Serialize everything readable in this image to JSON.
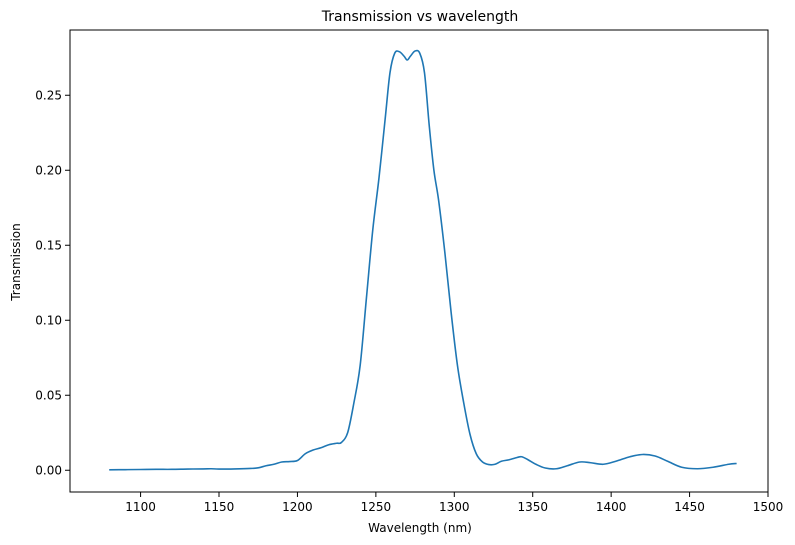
{
  "chart_data": {
    "type": "line",
    "title": "Transmission vs wavelength",
    "xlabel": "Wavelength (nm)",
    "ylabel": "Transmission",
    "xlim": [
      1055,
      1500
    ],
    "ylim": [
      -0.0145,
      0.2935
    ],
    "xticks": [
      1100,
      1150,
      1200,
      1250,
      1300,
      1350,
      1400,
      1450,
      1500
    ],
    "yticks": [
      0.0,
      0.05,
      0.1,
      0.15,
      0.2,
      0.25
    ],
    "xtick_labels": [
      "1100",
      "1150",
      "1200",
      "1250",
      "1300",
      "1350",
      "1400",
      "1450",
      "1500"
    ],
    "ytick_labels": [
      "0.00",
      "0.05",
      "0.10",
      "0.15",
      "0.20",
      "0.25"
    ],
    "grid": false,
    "series": [
      {
        "color": "#1f77b4",
        "x": [
          1080,
          1090,
          1100,
          1110,
          1120,
          1130,
          1140,
          1145,
          1150,
          1160,
          1170,
          1175,
          1180,
          1185,
          1190,
          1195,
          1200,
          1205,
          1210,
          1215,
          1220,
          1225,
          1228,
          1232,
          1236,
          1240,
          1244,
          1248,
          1252,
          1256,
          1259,
          1262,
          1265,
          1268,
          1270,
          1272,
          1275,
          1278,
          1281,
          1284,
          1287,
          1290,
          1294,
          1298,
          1302,
          1306,
          1310,
          1314,
          1318,
          1322,
          1326,
          1330,
          1335,
          1340,
          1343,
          1347,
          1352,
          1358,
          1365,
          1372,
          1380,
          1387,
          1395,
          1403,
          1412,
          1420,
          1428,
          1436,
          1445,
          1455,
          1465,
          1475,
          1480
        ],
        "y": [
          0.0003,
          0.0004,
          0.0005,
          0.0006,
          0.0006,
          0.0008,
          0.0009,
          0.001,
          0.0008,
          0.0009,
          0.0012,
          0.0016,
          0.003,
          0.004,
          0.0055,
          0.0058,
          0.0065,
          0.011,
          0.0135,
          0.015,
          0.017,
          0.018,
          0.0185,
          0.025,
          0.045,
          0.07,
          0.115,
          0.16,
          0.195,
          0.235,
          0.265,
          0.278,
          0.279,
          0.276,
          0.2735,
          0.276,
          0.2795,
          0.278,
          0.265,
          0.23,
          0.2,
          0.18,
          0.145,
          0.105,
          0.07,
          0.045,
          0.024,
          0.011,
          0.0055,
          0.0038,
          0.004,
          0.006,
          0.007,
          0.0085,
          0.009,
          0.007,
          0.004,
          0.0015,
          0.001,
          0.003,
          0.0055,
          0.005,
          0.004,
          0.006,
          0.009,
          0.0105,
          0.0095,
          0.006,
          0.002,
          0.001,
          0.002,
          0.004,
          0.0045
        ]
      }
    ]
  }
}
